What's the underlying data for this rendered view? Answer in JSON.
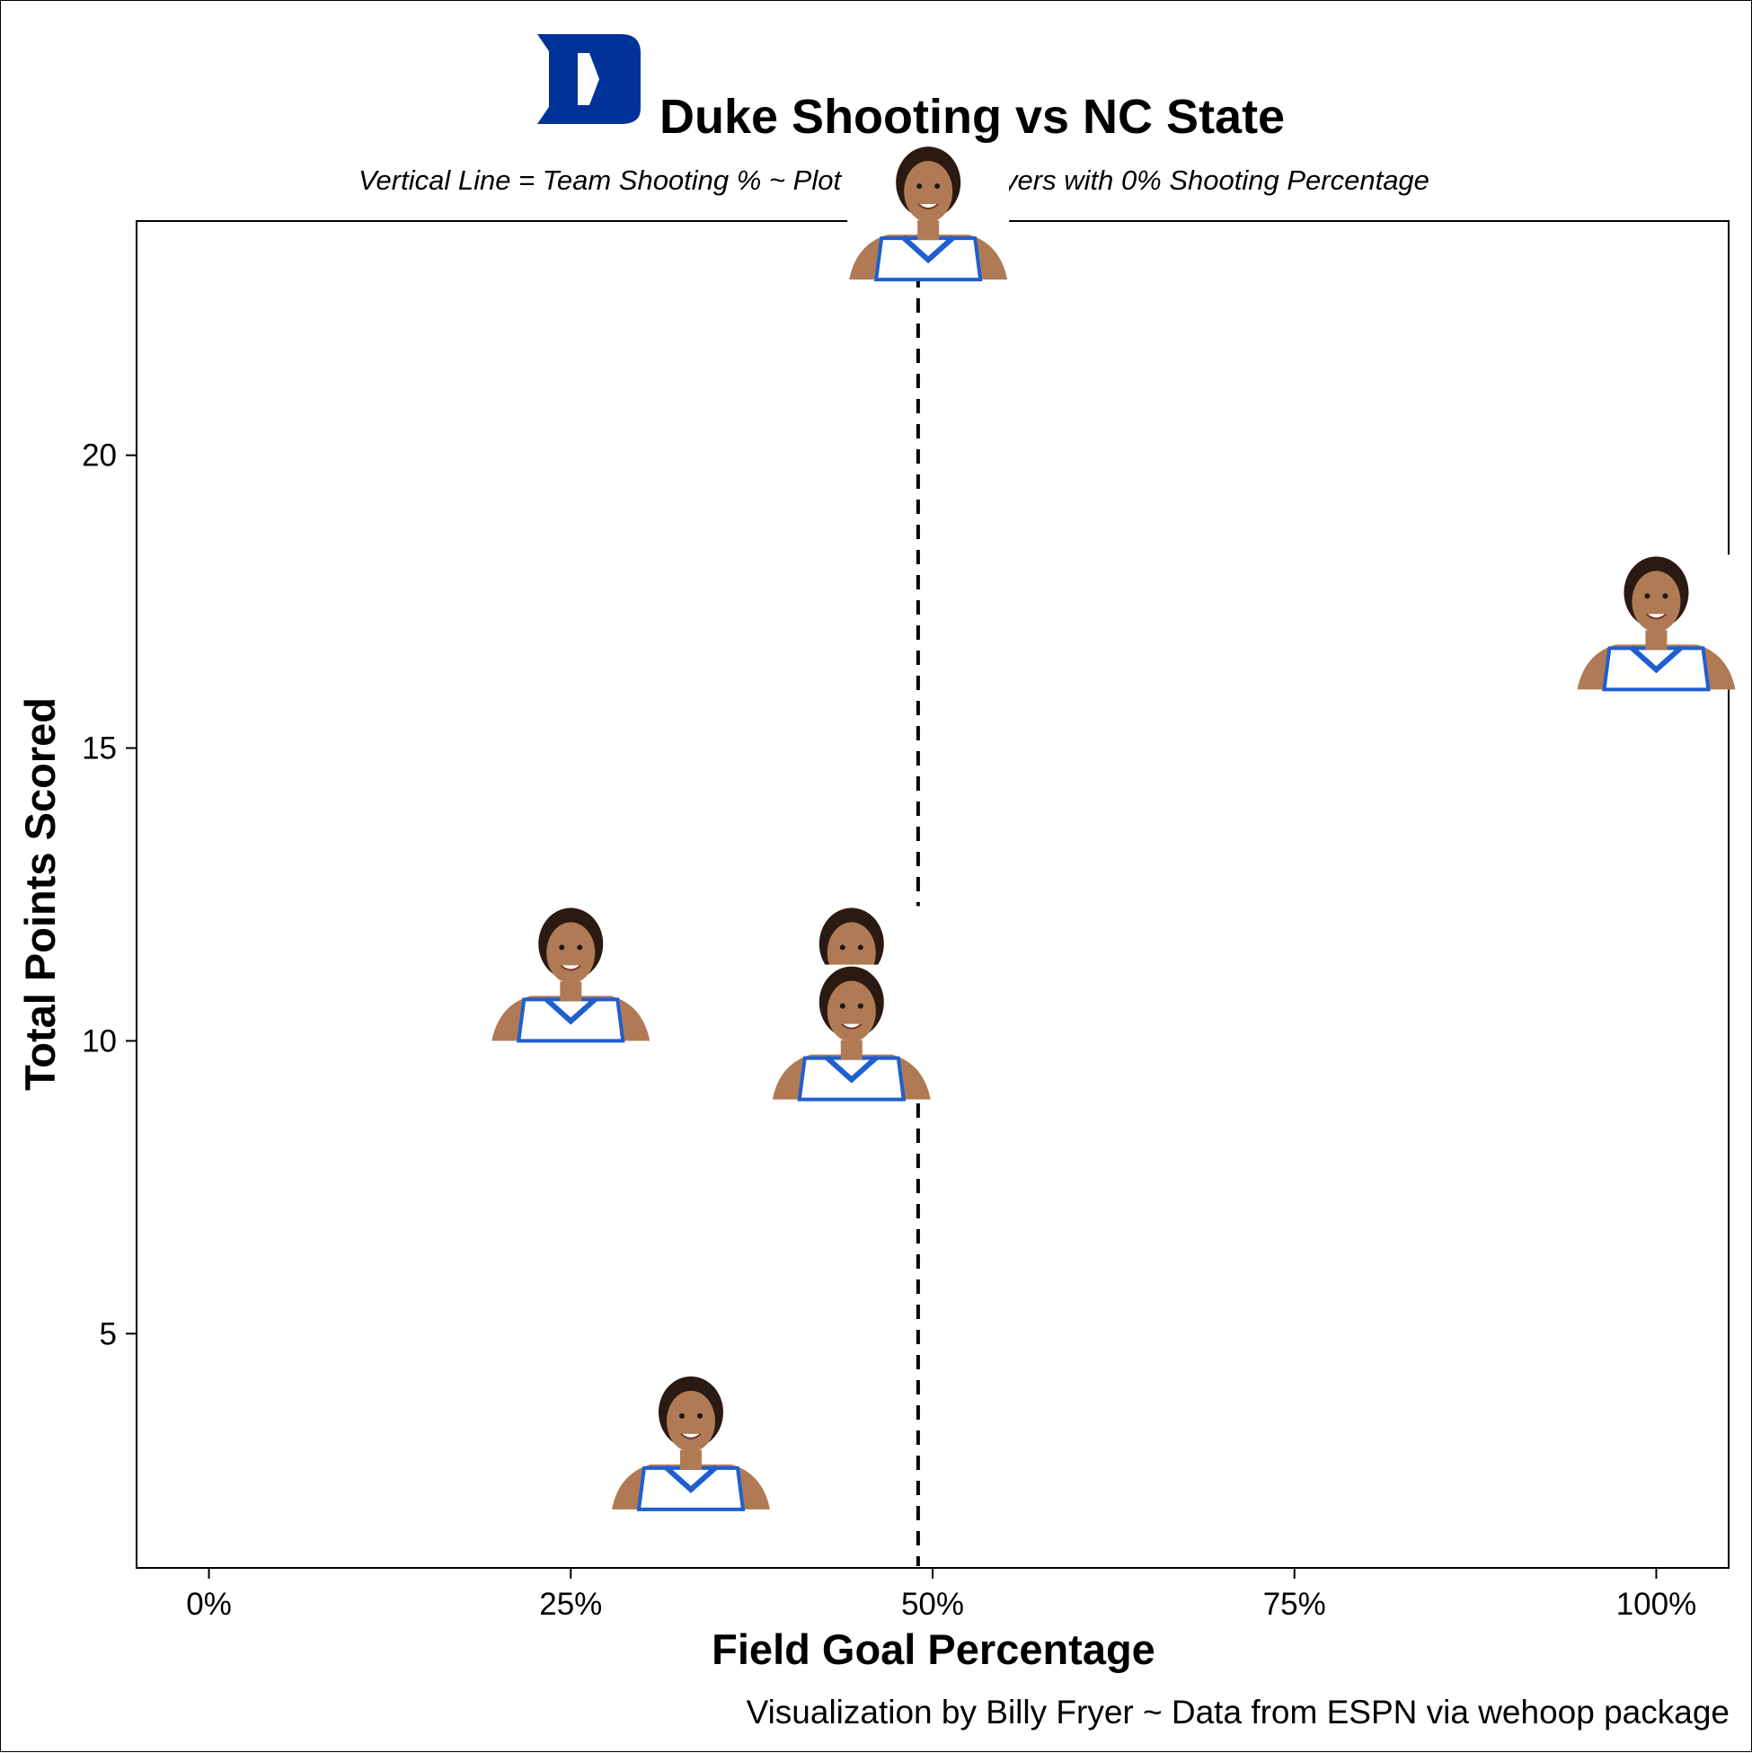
{
  "chart_data": {
    "type": "scatter",
    "title": "Duke Shooting vs NC State",
    "subtitle": "Vertical Line = Team Shooting % ~ Plot excludes players with 0% Shooting Percentage",
    "caption": "Visualization by Billy Fryer ~ Data from ESPN via wehoop package",
    "xlabel": "Field Goal Percentage",
    "ylabel": "Total Points Scored",
    "xlim": [
      -0.05,
      1.05
    ],
    "ylim": [
      1,
      24
    ],
    "x_ticks": [
      {
        "value": 0,
        "label": "0%"
      },
      {
        "value": 0.25,
        "label": "25%"
      },
      {
        "value": 0.5,
        "label": "50%"
      },
      {
        "value": 0.75,
        "label": "75%"
      },
      {
        "value": 1,
        "label": "100%"
      }
    ],
    "y_ticks": [
      {
        "value": 5,
        "label": "5"
      },
      {
        "value": 10,
        "label": "10"
      },
      {
        "value": 15,
        "label": "15"
      },
      {
        "value": 20,
        "label": "20"
      }
    ],
    "grid": false,
    "team_shooting_pct": 0.49,
    "marker": "player-headshot",
    "points": [
      {
        "x": 0.497,
        "y": 23
      },
      {
        "x": 1.0,
        "y": 16
      },
      {
        "x": 0.25,
        "y": 10
      },
      {
        "x": 0.444,
        "y": 10
      },
      {
        "x": 0.444,
        "y": 9
      },
      {
        "x": 0.333,
        "y": 2
      }
    ]
  },
  "logo": {
    "name": "duke-d-logo",
    "color": "#003399"
  },
  "colors": {
    "text": "#000000",
    "logo_blue": "#003399",
    "jersey_blue": "#1f5fcf",
    "skin": "#b07a55"
  }
}
